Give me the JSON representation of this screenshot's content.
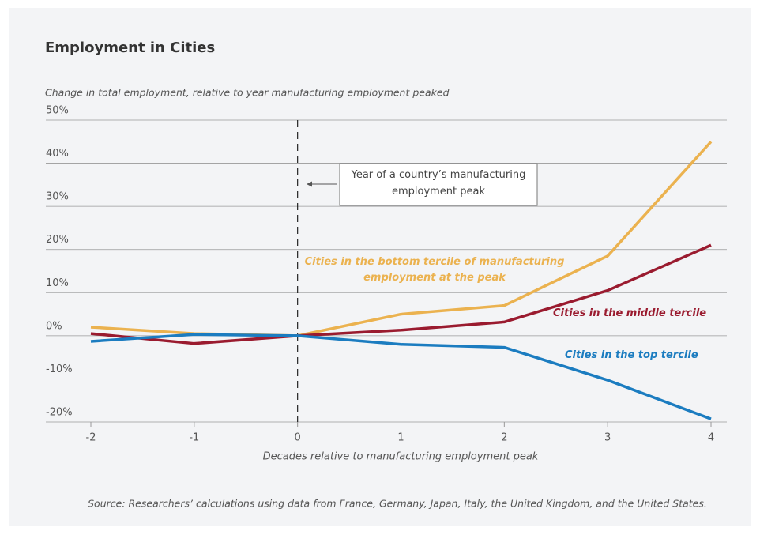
{
  "chart_data": {
    "type": "line",
    "title": "Employment in Cities",
    "y_label": "Change in total employment, relative to year manufacturing employment peaked",
    "x_label": "Decades relative to manufacturing employment peak",
    "source": "Source: Researchers’ calculations using data from France, Germany, Japan, Italy, the United Kingdom, and the United States.",
    "annotation": "Year of a country’s manufacturing employment peak",
    "vline": 0,
    "x": [
      -2,
      -1,
      0,
      1,
      2,
      3,
      4
    ],
    "xlim": [
      -2,
      4
    ],
    "xticks": [
      -2,
      -1,
      0,
      1,
      2,
      3,
      4
    ],
    "ylim": [
      -20,
      50
    ],
    "yticks": [
      {
        "value": 50,
        "label": "50%"
      },
      {
        "value": 40,
        "label": "40%"
      },
      {
        "value": 30,
        "label": "30%"
      },
      {
        "value": 20,
        "label": "20%"
      },
      {
        "value": 10,
        "label": "10%"
      },
      {
        "value": 0,
        "label": "0%"
      },
      {
        "value": -10,
        "label": "-10%"
      },
      {
        "value": -20,
        "label": "-20%"
      }
    ],
    "grid": true,
    "series": [
      {
        "name": "Cities in the bottom tercile of manufacturing employment at the peak",
        "color": "#ebb24f",
        "values": [
          2,
          0.5,
          0,
          5,
          7,
          18.5,
          45
        ]
      },
      {
        "name": "Cities in the middle tercile",
        "color": "#9a1b2f",
        "values": [
          0.5,
          -1.8,
          0,
          1.3,
          3.2,
          10.5,
          21
        ]
      },
      {
        "name": "Cities in the top tercile",
        "color": "#1b7cc0",
        "values": [
          -1.3,
          0.3,
          0,
          -2,
          -2.7,
          -10.3,
          -19.3
        ]
      }
    ]
  }
}
